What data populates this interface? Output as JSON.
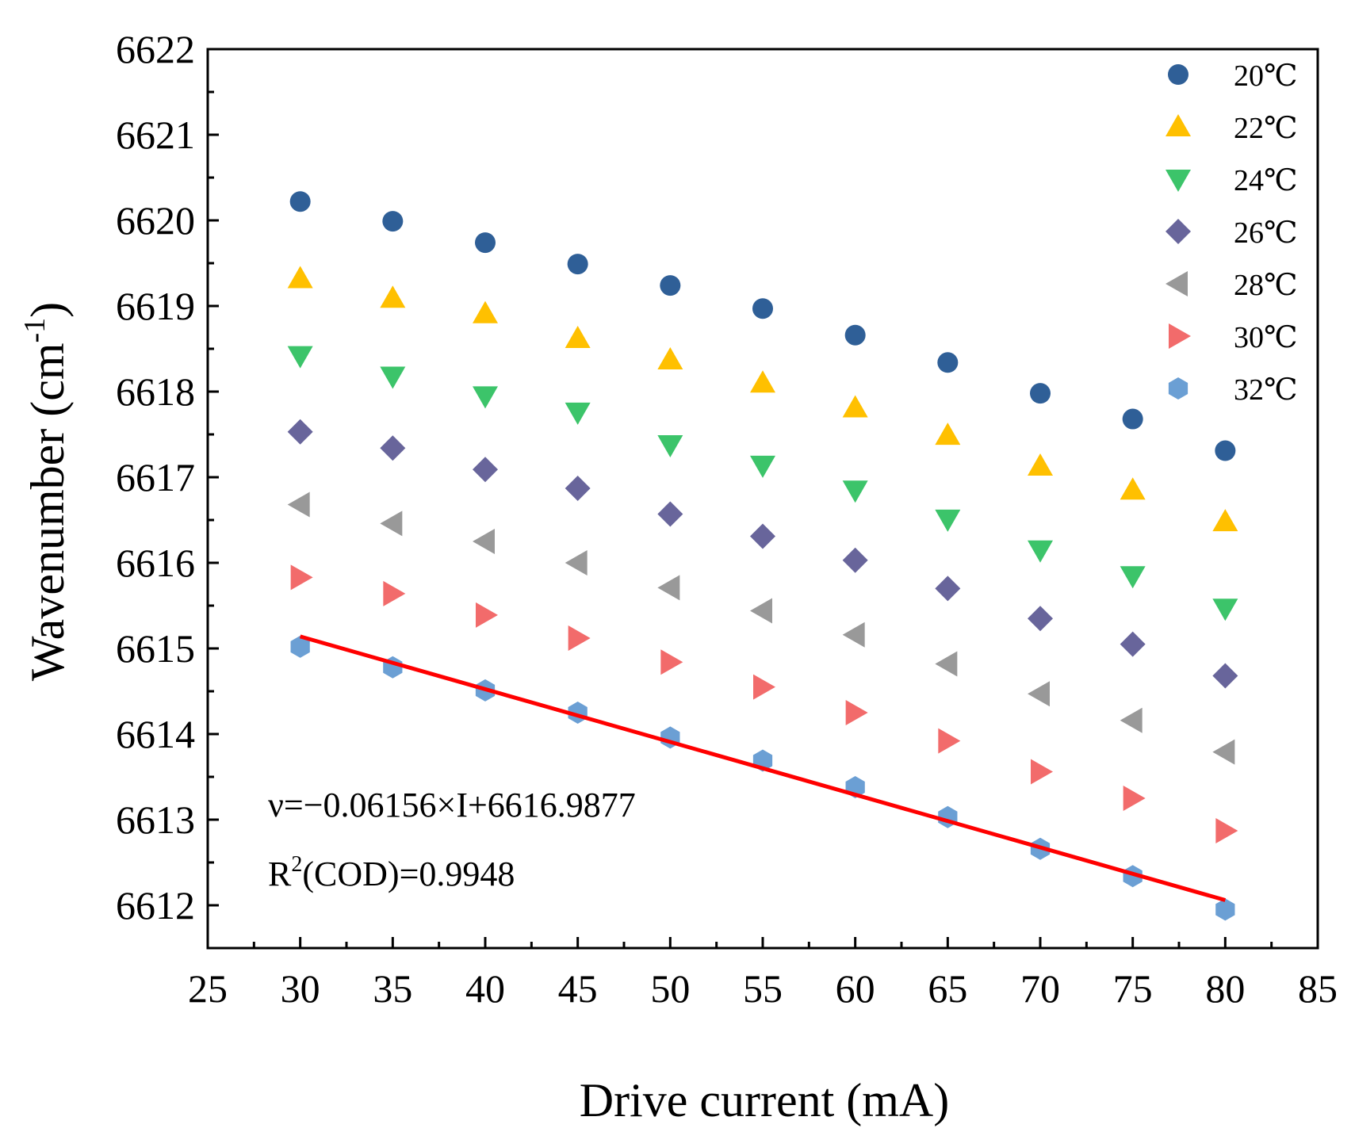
{
  "chart_data": {
    "type": "scatter",
    "title": "",
    "xlabel": "Drive current (mA)",
    "ylabel": "Wavenumber (cm",
    "ylabel_superscript": "-1",
    "ylabel_suffix": ")",
    "xlim": [
      25,
      85
    ],
    "ylim": [
      6611.5,
      6622
    ],
    "x_ticks": [
      25,
      30,
      35,
      40,
      45,
      50,
      55,
      60,
      65,
      70,
      75,
      80,
      85
    ],
    "y_ticks": [
      6612,
      6613,
      6614,
      6615,
      6616,
      6617,
      6618,
      6619,
      6620,
      6621,
      6622
    ],
    "x": [
      30,
      35,
      40,
      45,
      50,
      55,
      60,
      65,
      70,
      75,
      80
    ],
    "series": [
      {
        "name": "20℃",
        "marker": "circle",
        "color": "#2f5f97",
        "values": [
          6620.22,
          6619.99,
          6619.74,
          6619.49,
          6619.24,
          6618.97,
          6618.66,
          6618.34,
          6617.98,
          6617.68,
          6617.31
        ]
      },
      {
        "name": "22℃",
        "marker": "triangle-up",
        "color": "#ffc000",
        "values": [
          6619.32,
          6619.09,
          6618.91,
          6618.62,
          6618.37,
          6618.1,
          6617.81,
          6617.49,
          6617.13,
          6616.85,
          6616.48
        ]
      },
      {
        "name": "24℃",
        "marker": "triangle-down",
        "color": "#3cc46a",
        "values": [
          6618.42,
          6618.18,
          6617.95,
          6617.76,
          6617.38,
          6617.14,
          6616.85,
          6616.51,
          6616.15,
          6615.85,
          6615.47
        ]
      },
      {
        "name": "26℃",
        "marker": "diamond",
        "color": "#68659b",
        "values": [
          6617.53,
          6617.34,
          6617.09,
          6616.87,
          6616.57,
          6616.31,
          6616.03,
          6615.7,
          6615.35,
          6615.05,
          6614.68
        ]
      },
      {
        "name": "28℃",
        "marker": "triangle-left",
        "color": "#999999",
        "values": [
          6616.68,
          6616.46,
          6616.25,
          6616.0,
          6615.71,
          6615.44,
          6615.16,
          6614.82,
          6614.47,
          6614.16,
          6613.79
        ]
      },
      {
        "name": "30℃",
        "marker": "triangle-right",
        "color": "#f26b6b",
        "values": [
          6615.83,
          6615.64,
          6615.39,
          6615.12,
          6614.84,
          6614.55,
          6614.25,
          6613.92,
          6613.56,
          6613.25,
          6612.87
        ]
      },
      {
        "name": "32℃",
        "marker": "hexagon",
        "color": "#6b9fd4",
        "values": [
          6615.02,
          6614.78,
          6614.51,
          6614.25,
          6613.96,
          6613.69,
          6613.38,
          6613.03,
          6612.66,
          6612.34,
          6611.95
        ]
      }
    ],
    "fit_line": {
      "color": "#ff0000",
      "x": [
        30,
        80
      ],
      "y": [
        6615.14,
        6612.06
      ]
    },
    "annotations": {
      "equation": "ν=−0.06156×I+6616.9877",
      "r2_prefix": "R",
      "r2_superscript": "2",
      "r2_suffix": "(COD)=0.9948"
    },
    "legend_position": "top-right",
    "grid": false
  }
}
